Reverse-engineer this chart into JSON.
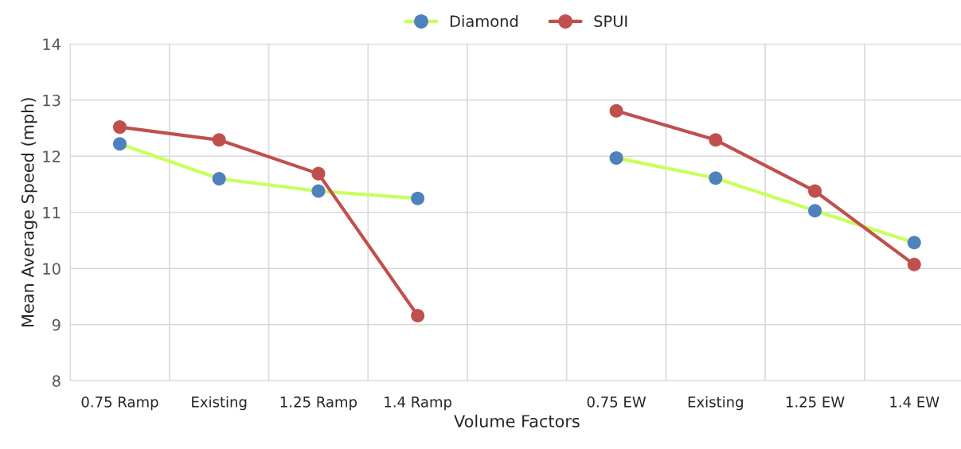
{
  "chart_data": {
    "type": "line",
    "xlabel": "Volume Factors",
    "ylabel": "Mean Average Speed (mph)",
    "categories": [
      "0.75 Ramp",
      "Existing",
      "1.25 Ramp",
      "1.4 Ramp",
      null,
      "0.75 EW",
      "Existing",
      "1.25 EW",
      "1.4 EW"
    ],
    "series": [
      {
        "name": "Diamond",
        "color": "#c8ff5a",
        "colors": [
          "#4f81bd",
          "#4f81bd",
          "#4f81bd",
          "#4f81bd",
          "#4f81bd",
          "#4f81bd",
          "#4f81bd",
          "#4f81bd",
          "#4f81bd"
        ],
        "values": [
          12.22,
          11.6,
          11.38,
          11.25,
          null,
          11.97,
          11.61,
          11.03,
          10.46
        ]
      },
      {
        "name": "SPUI",
        "color": "#c0504d",
        "colors": [
          "#c0504d",
          "#c0504d",
          "#c0504d",
          "#c0504d",
          "#c0504d",
          "#c0504d",
          "#c0504d",
          "#c0504d",
          "#c0504d"
        ],
        "values": [
          12.52,
          12.29,
          11.69,
          9.16,
          null,
          12.81,
          12.29,
          11.38,
          10.07
        ]
      }
    ],
    "ylim": [
      8,
      14
    ],
    "yticks": [
      8,
      9,
      10,
      11,
      12,
      13,
      14
    ],
    "grid": true,
    "legend": "top",
    "marker": "circle",
    "line_style": "solid"
  }
}
